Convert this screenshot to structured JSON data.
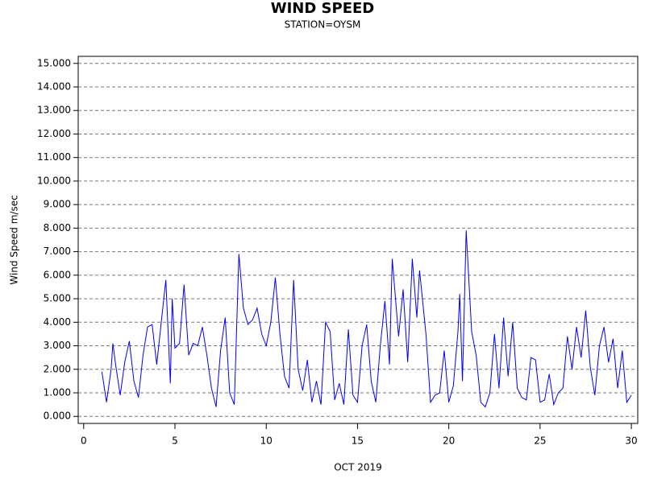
{
  "chart_data": {
    "type": "line",
    "title": "WIND SPEED",
    "subtitle": "STATION=OYSM",
    "x_label": "OCT 2019",
    "y_label": "Wind Speed m/sec",
    "xlim": [
      -0.3,
      30.35
    ],
    "xticks": [
      0,
      5,
      10,
      15,
      20,
      25,
      30
    ],
    "ylim": [
      -0.3,
      15.3
    ],
    "yticks": [
      {
        "value": 0,
        "label": "0.000"
      },
      {
        "value": 1,
        "label": "1.000"
      },
      {
        "value": 2,
        "label": "2.000"
      },
      {
        "value": 3,
        "label": "3.000"
      },
      {
        "value": 4,
        "label": "4.000"
      },
      {
        "value": 5,
        "label": "5.000"
      },
      {
        "value": 6,
        "label": "6.000"
      },
      {
        "value": 7,
        "label": "7.000"
      },
      {
        "value": 8,
        "label": "8.000"
      },
      {
        "value": 9,
        "label": "9.000"
      },
      {
        "value": 10,
        "label": "10.000"
      },
      {
        "value": 11,
        "label": "11.000"
      },
      {
        "value": 12,
        "label": "12.000"
      },
      {
        "value": 13,
        "label": "13.000"
      },
      {
        "value": 14,
        "label": "14.000"
      },
      {
        "value": 15,
        "label": "15.000"
      }
    ],
    "grid": true,
    "series": [
      {
        "color": "#0000ff",
        "x": [
          1,
          1.25,
          1.5,
          1.6,
          1.75,
          2,
          2.25,
          2.5,
          2.75,
          3,
          3.25,
          3.5,
          3.75,
          4,
          4.25,
          4.5,
          4.75,
          4.85,
          5,
          5.25,
          5.5,
          5.75,
          6,
          6.25,
          6.5,
          6.75,
          7,
          7.25,
          7.5,
          7.75,
          8,
          8.25,
          8.5,
          8.75,
          9,
          9.25,
          9.5,
          9.75,
          10,
          10.25,
          10.5,
          10.75,
          11,
          11.25,
          11.5,
          11.75,
          12,
          12.25,
          12.5,
          12.75,
          13,
          13.25,
          13.5,
          13.75,
          14,
          14.25,
          14.5,
          14.75,
          15,
          15.25,
          15.5,
          15.75,
          16,
          16.25,
          16.5,
          16.75,
          16.9,
          17.25,
          17.5,
          17.75,
          18,
          18.25,
          18.4,
          18.75,
          19,
          19.25,
          19.5,
          19.75,
          20,
          20.25,
          20.5,
          20.6,
          20.75,
          20.95,
          21.25,
          21.5,
          21.75,
          22,
          22.25,
          22.5,
          22.75,
          23,
          23.25,
          23.5,
          23.75,
          24,
          24.25,
          24.5,
          24.75,
          25,
          25.25,
          25.5,
          25.75,
          26,
          26.25,
          26.5,
          26.75,
          27,
          27.25,
          27.5,
          27.75,
          28,
          28.25,
          28.5,
          28.75,
          29,
          29.25,
          29.5,
          29.75,
          30
        ],
        "values": [
          1.9,
          0.6,
          2.0,
          3.1,
          2.2,
          0.9,
          2.3,
          3.2,
          1.5,
          0.8,
          2.6,
          3.8,
          3.9,
          2.2,
          4.0,
          5.8,
          1.4,
          5.0,
          2.9,
          3.1,
          5.6,
          2.6,
          3.1,
          3.0,
          3.8,
          2.6,
          1.2,
          0.4,
          2.8,
          4.2,
          1.0,
          0.5,
          6.9,
          4.6,
          3.9,
          4.1,
          4.6,
          3.5,
          3.0,
          4.0,
          5.9,
          3.5,
          1.7,
          1.2,
          5.8,
          2.0,
          1.1,
          2.4,
          0.6,
          1.5,
          0.5,
          4.0,
          3.6,
          0.7,
          1.4,
          0.5,
          3.7,
          0.9,
          0.6,
          3.0,
          3.9,
          1.5,
          0.6,
          3.0,
          4.9,
          2.2,
          6.7,
          3.4,
          5.4,
          2.3,
          6.7,
          4.2,
          6.2,
          3.5,
          0.6,
          0.9,
          1.0,
          2.8,
          0.6,
          1.3,
          3.6,
          5.2,
          1.5,
          7.9,
          3.6,
          2.6,
          0.6,
          0.4,
          1.0,
          3.5,
          1.2,
          4.2,
          1.7,
          4.0,
          1.2,
          0.8,
          0.7,
          2.5,
          2.4,
          0.6,
          0.7,
          1.8,
          0.5,
          1.0,
          1.2,
          3.4,
          2.0,
          3.8,
          2.5,
          4.5,
          2.1,
          0.9,
          3.0,
          3.8,
          2.3,
          3.3,
          1.2,
          2.8,
          0.6,
          0.9
        ]
      }
    ]
  }
}
